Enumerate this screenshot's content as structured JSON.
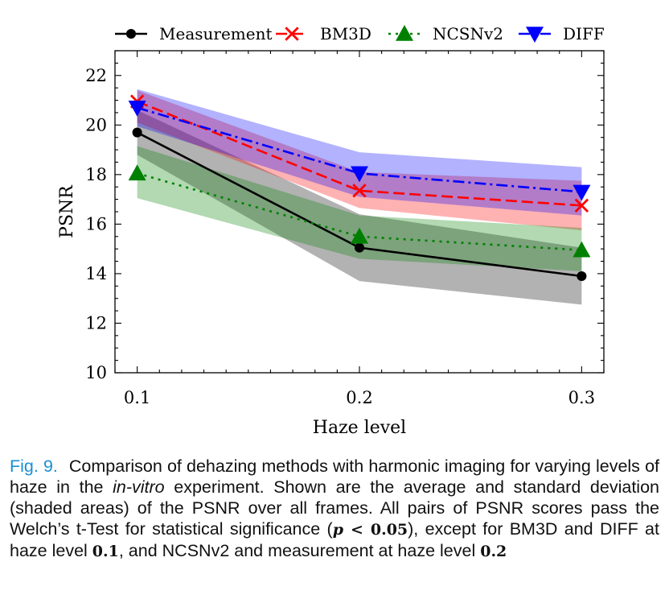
{
  "chart_data": {
    "type": "line",
    "xlabel": "Haze level",
    "ylabel": "PSNR",
    "x": [
      0.1,
      0.2,
      0.3
    ],
    "x_tick_labels": [
      "0.1",
      "0.2",
      "0.3"
    ],
    "xlim": [
      0.09,
      0.31
    ],
    "ylim": [
      10,
      23
    ],
    "y_ticks": [
      10,
      12,
      14,
      16,
      18,
      20,
      22
    ],
    "grid": false,
    "legend_position": "top",
    "series": [
      {
        "name": "Measurement",
        "values": [
          19.7,
          15.05,
          13.9
        ],
        "lower": [
          18.8,
          13.7,
          12.75
        ],
        "upper": [
          20.6,
          16.4,
          15.05
        ],
        "color": "#000000",
        "marker": "circle",
        "dash": "solid"
      },
      {
        "name": "BM3D",
        "values": [
          20.95,
          17.35,
          16.75
        ],
        "lower": [
          20.1,
          16.65,
          15.75
        ],
        "upper": [
          21.4,
          18.1,
          17.75
        ],
        "color": "#ff0000",
        "marker": "x",
        "dash": "dashed"
      },
      {
        "name": "NCSNv2",
        "values": [
          18.05,
          15.5,
          14.95
        ],
        "lower": [
          17.05,
          14.6,
          14.1
        ],
        "upper": [
          19.15,
          16.35,
          15.85
        ],
        "color": "#008000",
        "marker": "triangle-up",
        "dash": "dotted"
      },
      {
        "name": "DIFF",
        "values": [
          20.7,
          18.05,
          17.3
        ],
        "lower": [
          19.95,
          17.1,
          16.35
        ],
        "upper": [
          21.45,
          18.9,
          18.3
        ],
        "color": "#0000ff",
        "marker": "triangle-down",
        "dash": "dashdot"
      }
    ]
  },
  "caption": {
    "label": "Fig. 9.",
    "t1": "Comparison of dehazing methods with harmonic imaging for varying levels of haze in the ",
    "t2": "in-vitro",
    "t3": " experiment. Shown are the average and standard deviation (shaded areas) of the PSNR over all frames. All pairs of PSNR scores pass the Welch’s t-Test for statistical significance (",
    "m1": "p",
    "m2": " < 0.05",
    "t4": "), except for BM3D and DIFF at haze level ",
    "m3": "0.1",
    "t5": ", and NCSNv2 and measurement at haze level ",
    "m4": "0.2"
  }
}
